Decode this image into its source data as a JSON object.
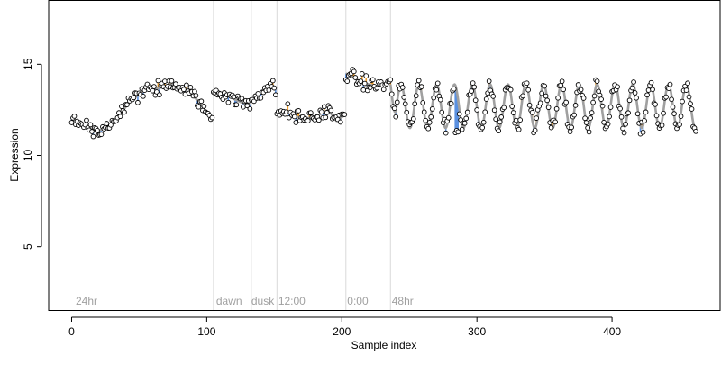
{
  "chart_data": {
    "type": "scatter",
    "xlabel": "Sample index",
    "ylabel": "Expression",
    "xlim": [
      -17,
      480
    ],
    "ylim": [
      1.5,
      18.5
    ],
    "x_ticks": [
      0,
      100,
      200,
      300,
      400
    ],
    "y_ticks": [
      5,
      10,
      15
    ],
    "grid": false,
    "legend": "none",
    "colors": {
      "fitted_line": "#a0a0a0",
      "residual_above": "#f0a030",
      "residual_below": "#5a90e0",
      "point_fill": "#ffffff",
      "point_stroke": "#000000",
      "divider": "#d9d9d9",
      "annotation": "#a0a0a0"
    },
    "dividers": [
      105,
      133,
      152,
      203,
      236
    ],
    "annotations": [
      {
        "x": 3,
        "label": "24hr"
      },
      {
        "x": 107,
        "label": "dawn"
      },
      {
        "x": 133,
        "label": "dusk"
      },
      {
        "x": 153,
        "label": "12:00"
      },
      {
        "x": 204,
        "label": "0:00"
      },
      {
        "x": 237,
        "label": "48hr"
      }
    ],
    "segments": [
      {
        "start": 0,
        "end": 104,
        "shape": "trend",
        "points": [
          [
            0,
            12
          ],
          [
            10,
            11.7
          ],
          [
            18,
            11.3
          ],
          [
            28,
            11.6
          ],
          [
            36,
            12.3
          ],
          [
            45,
            13.1
          ],
          [
            55,
            13.6
          ],
          [
            65,
            13.7
          ],
          [
            75,
            13.9
          ],
          [
            85,
            13.6
          ],
          [
            95,
            12.9
          ],
          [
            100,
            12.3
          ],
          [
            104,
            12.0
          ]
        ]
      },
      {
        "start": 105,
        "end": 132,
        "shape": "trend",
        "points": [
          [
            105,
            13.6
          ],
          [
            112,
            13.4
          ],
          [
            120,
            13.1
          ],
          [
            126,
            12.9
          ],
          [
            132,
            12.8
          ]
        ]
      },
      {
        "start": 133,
        "end": 151,
        "shape": "trend",
        "points": [
          [
            133,
            13.0
          ],
          [
            140,
            13.5
          ],
          [
            146,
            13.8
          ],
          [
            151,
            13.6
          ]
        ]
      },
      {
        "start": 152,
        "end": 202,
        "shape": "trend",
        "points": [
          [
            152,
            12.3
          ],
          [
            160,
            12.4
          ],
          [
            170,
            12.0
          ],
          [
            180,
            12.1
          ],
          [
            190,
            12.5
          ],
          [
            196,
            11.9
          ],
          [
            202,
            12.2
          ]
        ]
      },
      {
        "start": 203,
        "end": 235,
        "shape": "trend",
        "points": [
          [
            203,
            14.5
          ],
          [
            208,
            14.3
          ],
          [
            215,
            14.0
          ],
          [
            225,
            13.8
          ],
          [
            235,
            14.0
          ]
        ]
      },
      {
        "start": 236,
        "end": 462,
        "shape": "oscillation",
        "base": 12.7,
        "amplitude": 1.2,
        "period": 13.2,
        "phase": 4.5,
        "start_level": 13.9
      }
    ]
  }
}
